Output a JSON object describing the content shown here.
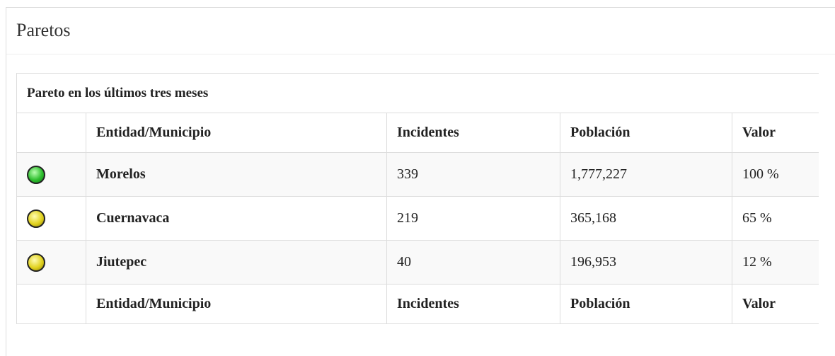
{
  "header": {
    "title": "Paretos"
  },
  "table": {
    "caption": "Pareto en los últimos tres meses",
    "columns": [
      "Entidad/Municipio",
      "Incidentes",
      "Población",
      "Valor"
    ],
    "rows": [
      [
        "Morelos",
        "339",
        "1,777,227",
        "100 %"
      ],
      [
        "Cuernavaca",
        "219",
        "365,168",
        "65 %"
      ],
      [
        "Jiutepec",
        "40",
        "196,953",
        "12 %"
      ]
    ],
    "footer": [
      "Entidad/Municipio",
      "Incidentes",
      "Población",
      "Valor"
    ]
  }
}
